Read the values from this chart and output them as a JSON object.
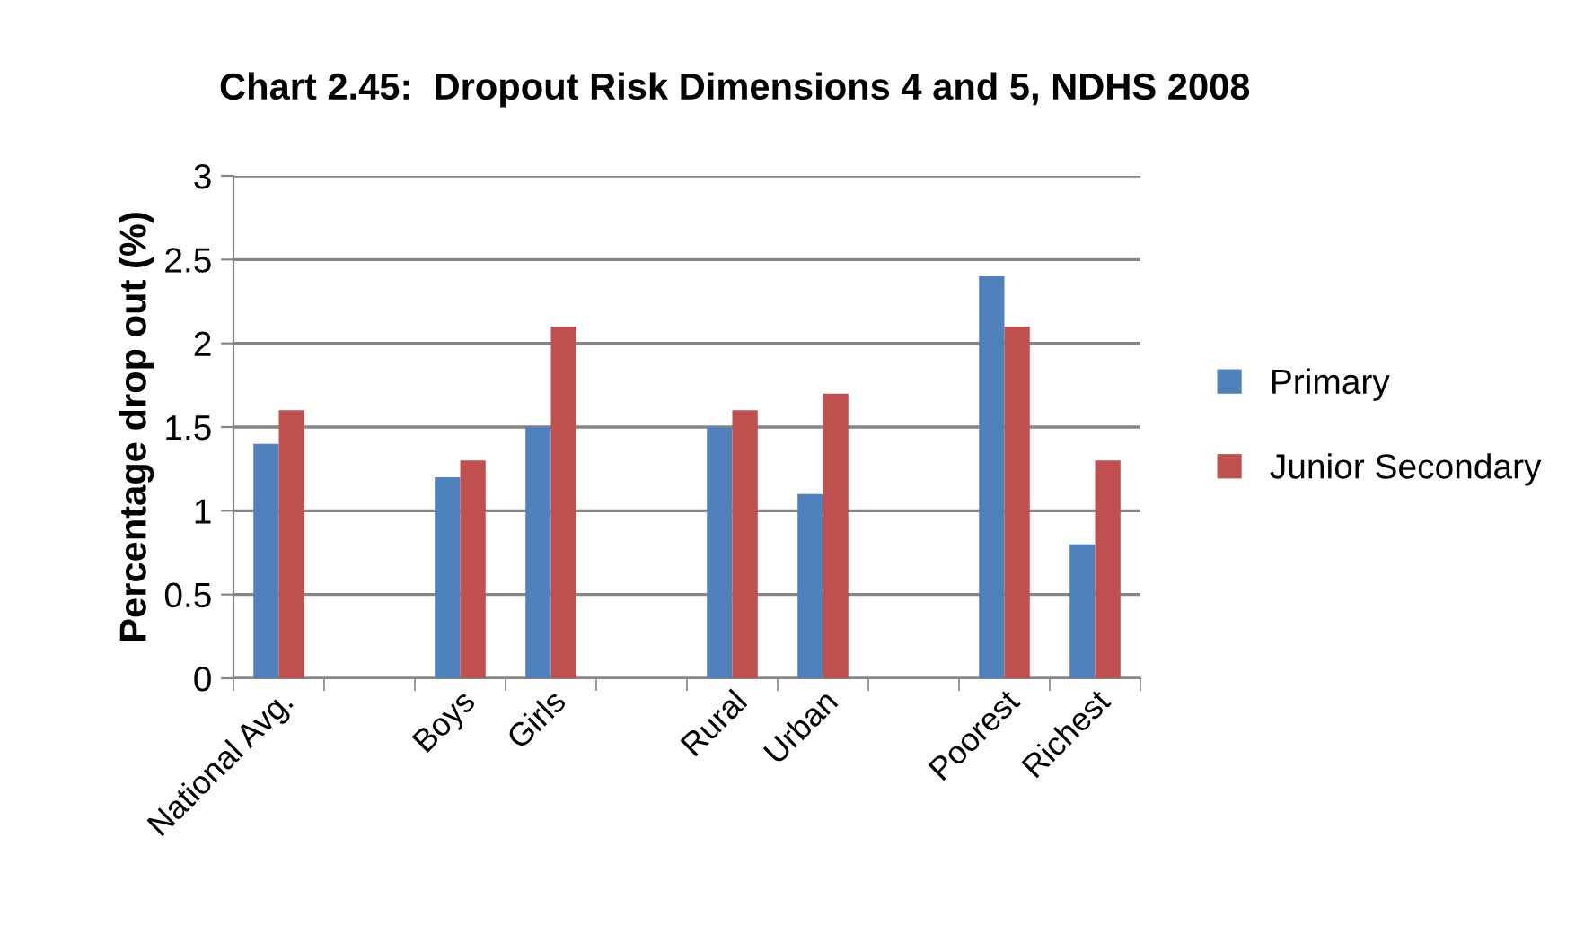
{
  "chart_data": {
    "type": "bar",
    "title": "Chart 2.45:  Dropout Risk Dimensions 4 and 5, NDHS 2008",
    "ylabel": "Percentage drop out (%)",
    "categories": [
      "National Avg.",
      null,
      "Boys",
      "Girls",
      null,
      "Rural",
      "Urban",
      null,
      "Poorest",
      "Richest"
    ],
    "series": [
      {
        "name": "Primary",
        "color": "#4f81bd",
        "values": [
          1.4,
          null,
          1.2,
          1.5,
          null,
          1.5,
          1.1,
          null,
          2.4,
          0.8
        ]
      },
      {
        "name": "Junior Secondary",
        "color": "#c0504d",
        "values": [
          1.6,
          null,
          1.3,
          2.1,
          null,
          1.6,
          1.7,
          null,
          2.1,
          1.3
        ]
      }
    ],
    "ylim": [
      0,
      3
    ],
    "yticks": [
      0,
      0.5,
      1,
      1.5,
      2,
      2.5,
      3
    ],
    "grid": "y",
    "legend": "right"
  }
}
